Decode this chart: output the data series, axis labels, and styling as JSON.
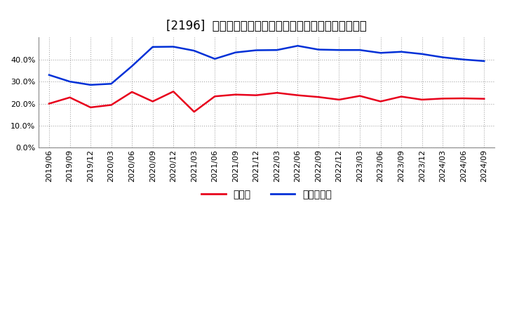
{
  "title": "[2196]  現頗金、有利子負債の総資産に対する比率の推移",
  "x_labels": [
    "2019/06",
    "2019/09",
    "2019/12",
    "2020/03",
    "2020/06",
    "2020/09",
    "2020/12",
    "2021/03",
    "2021/06",
    "2021/09",
    "2021/12",
    "2022/03",
    "2022/06",
    "2022/09",
    "2022/12",
    "2023/03",
    "2023/06",
    "2023/09",
    "2023/12",
    "2024/03",
    "2024/06",
    "2024/09"
  ],
  "cash": [
    0.2,
    0.228,
    0.183,
    0.194,
    0.253,
    0.21,
    0.255,
    0.163,
    0.233,
    0.241,
    0.238,
    0.249,
    0.238,
    0.23,
    0.218,
    0.235,
    0.21,
    0.232,
    0.218,
    0.223,
    0.224,
    0.222
  ],
  "debt": [
    0.33,
    0.3,
    0.285,
    0.29,
    0.37,
    0.457,
    0.458,
    0.44,
    0.403,
    0.432,
    0.442,
    0.443,
    0.462,
    0.445,
    0.443,
    0.443,
    0.43,
    0.435,
    0.425,
    0.41,
    0.4,
    0.393
  ],
  "cash_color": "#e8001c",
  "debt_color": "#0030d7",
  "background_color": "#ffffff",
  "plot_bg_color": "#ffffff",
  "grid_color": "#aaaaaa",
  "legend_cash": "現頗金",
  "legend_debt": "有利子負債",
  "ylim": [
    0.0,
    0.5
  ],
  "yticks": [
    0.0,
    0.1,
    0.2,
    0.3,
    0.4
  ],
  "title_fontsize": 12,
  "axis_fontsize": 8,
  "legend_fontsize": 10
}
